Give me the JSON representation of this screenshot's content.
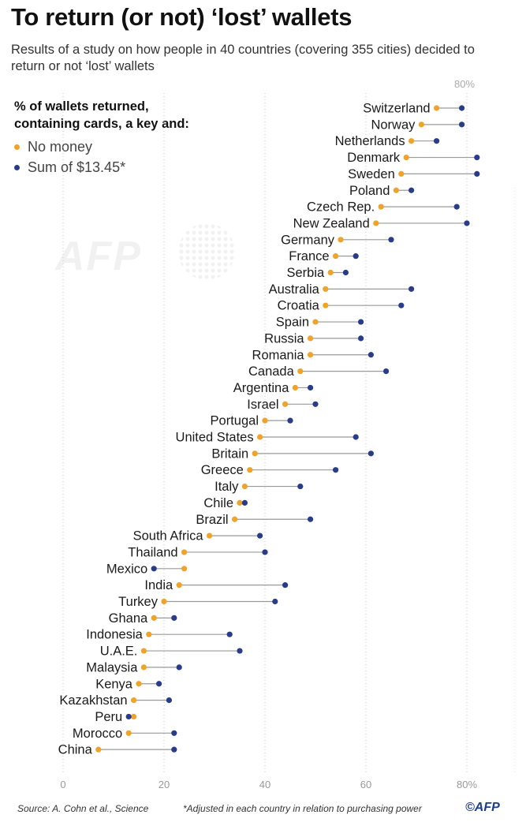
{
  "header": {
    "title": "To return (or not) ‘lost’ wallets",
    "subtitle": "Results of a study on how people in 40 countries (covering 355 cities) decided to return or not ‘lost’ wallets"
  },
  "legend": {
    "title_line1": "% of wallets returned,",
    "title_line2": "containing cards, a key and:",
    "items": [
      {
        "label": "No money",
        "color": "#f0a32a"
      },
      {
        "label": "Sum of $13.45*",
        "color": "#283c8a"
      }
    ]
  },
  "chart_data": {
    "type": "dumbbell",
    "xlim": [
      0,
      90
    ],
    "x_ticks": [
      "0",
      "20",
      "40",
      "60",
      "80%"
    ],
    "top_tick_label": "80%",
    "grid": "vertical-dotted",
    "series": [
      {
        "name": "No money",
        "color": "#f0a32a"
      },
      {
        "name": "Sum of $13.45*",
        "color": "#283c8a"
      }
    ],
    "rows": [
      {
        "country": "Switzerland",
        "no_money": 74,
        "money": 79
      },
      {
        "country": "Norway",
        "no_money": 71,
        "money": 79
      },
      {
        "country": "Netherlands",
        "no_money": 69,
        "money": 74
      },
      {
        "country": "Denmark",
        "no_money": 68,
        "money": 82
      },
      {
        "country": "Sweden",
        "no_money": 67,
        "money": 82
      },
      {
        "country": "Poland",
        "no_money": 66,
        "money": 69
      },
      {
        "country": "Czech Rep.",
        "no_money": 63,
        "money": 78
      },
      {
        "country": "New Zealand",
        "no_money": 62,
        "money": 80
      },
      {
        "country": "Germany",
        "no_money": 55,
        "money": 65
      },
      {
        "country": "France",
        "no_money": 54,
        "money": 58
      },
      {
        "country": "Serbia",
        "no_money": 53,
        "money": 56
      },
      {
        "country": "Australia",
        "no_money": 52,
        "money": 69
      },
      {
        "country": "Croatia",
        "no_money": 52,
        "money": 67
      },
      {
        "country": "Spain",
        "no_money": 50,
        "money": 59
      },
      {
        "country": "Russia",
        "no_money": 49,
        "money": 59
      },
      {
        "country": "Romania",
        "no_money": 49,
        "money": 61
      },
      {
        "country": "Canada",
        "no_money": 47,
        "money": 64
      },
      {
        "country": "Argentina",
        "no_money": 46,
        "money": 49
      },
      {
        "country": "Israel",
        "no_money": 44,
        "money": 50
      },
      {
        "country": "Portugal",
        "no_money": 40,
        "money": 45
      },
      {
        "country": "United States",
        "no_money": 39,
        "money": 58
      },
      {
        "country": "Britain",
        "no_money": 38,
        "money": 61
      },
      {
        "country": "Greece",
        "no_money": 37,
        "money": 54
      },
      {
        "country": "Italy",
        "no_money": 36,
        "money": 47
      },
      {
        "country": "Chile",
        "no_money": 35,
        "money": 36
      },
      {
        "country": "Brazil",
        "no_money": 34,
        "money": 49
      },
      {
        "country": "South Africa",
        "no_money": 29,
        "money": 39
      },
      {
        "country": "Thailand",
        "no_money": 24,
        "money": 40
      },
      {
        "country": "Mexico",
        "no_money": 24,
        "money": 18
      },
      {
        "country": "India",
        "no_money": 23,
        "money": 44
      },
      {
        "country": "Turkey",
        "no_money": 20,
        "money": 42
      },
      {
        "country": "Ghana",
        "no_money": 18,
        "money": 22
      },
      {
        "country": "Indonesia",
        "no_money": 17,
        "money": 33
      },
      {
        "country": "U.A.E.",
        "no_money": 16,
        "money": 35
      },
      {
        "country": "Malaysia",
        "no_money": 16,
        "money": 23
      },
      {
        "country": "Kenya",
        "no_money": 15,
        "money": 19
      },
      {
        "country": "Kazakhstan",
        "no_money": 14,
        "money": 21
      },
      {
        "country": "Peru",
        "no_money": 14,
        "money": 13
      },
      {
        "country": "Morocco",
        "no_money": 13,
        "money": 22
      },
      {
        "country": "China",
        "no_money": 7,
        "money": 22
      }
    ]
  },
  "footer": {
    "source": "Source: A. Cohn et al., Science",
    "note": "*Adjusted in each country in relation to purchasing power",
    "credit": "©AFP"
  },
  "watermark": "AFP"
}
